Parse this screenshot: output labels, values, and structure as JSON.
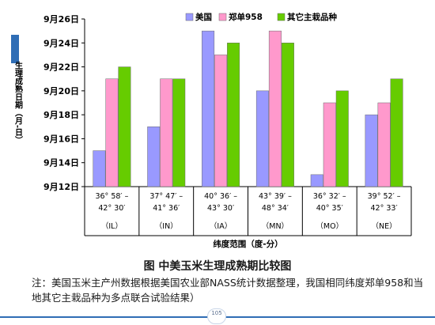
{
  "page": {
    "caption": "图  中美玉米生理成熟期比较图",
    "note": "注：美国玉米主产州数据根据美国农业部NASS统计数据整理，我国相同纬度郑单958和当地其它主栽品种为多点联合试验结果）",
    "page_number": "105",
    "accent_color": "#2f6db5"
  },
  "chart_data": {
    "type": "bar",
    "title": "",
    "ylabel": "生理成熟日期（月-日）",
    "xlabel": "纬度范围（度-分）",
    "y_ticks": [
      "9月12日",
      "9月14日",
      "9月16日",
      "9月18日",
      "9月20日",
      "9月22日",
      "9月24日",
      "9月26日"
    ],
    "ylim": [
      "9月12日",
      "9月26日"
    ],
    "grid": false,
    "legend_position": "top",
    "categories": [
      {
        "range_line1": "36° 58′ –",
        "range_line2": "42° 30′",
        "state": "（IL）"
      },
      {
        "range_line1": "37° 47′ –",
        "range_line2": "41° 36′",
        "state": "（IN）"
      },
      {
        "range_line1": "40° 36′ –",
        "range_line2": "43° 30′",
        "state": "（IA）"
      },
      {
        "range_line1": "43° 39′ –",
        "range_line2": "48° 34′",
        "state": "（MN）"
      },
      {
        "range_line1": "36° 32′ –",
        "range_line2": "40° 35′",
        "state": "（MO）"
      },
      {
        "range_line1": "39° 52′ –",
        "range_line2": "42° 33′",
        "state": "（NE）"
      }
    ],
    "series": [
      {
        "name": "美国",
        "color": "#9999ff",
        "values": [
          "9月15日",
          "9月17日",
          "9月25日",
          "9月20日",
          "9月13日",
          "9月18日"
        ]
      },
      {
        "name": "郑单958",
        "color": "#ff99cc",
        "values": [
          "9月21日",
          "9月21日",
          "9月23日",
          "9月25日",
          "9月19日",
          "9月19日"
        ]
      },
      {
        "name": "其它主栽品种",
        "color": "#66cc00",
        "values": [
          "9月22日",
          "9月21日",
          "9月24日",
          "9月24日",
          "9月20日",
          "9月21日"
        ]
      }
    ]
  }
}
